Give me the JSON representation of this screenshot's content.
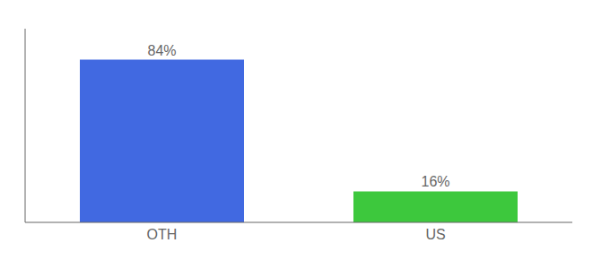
{
  "chart_data": {
    "type": "bar",
    "categories": [
      "OTH",
      "US"
    ],
    "values": [
      84,
      16
    ],
    "value_labels": [
      "84%",
      "16%"
    ],
    "colors": [
      "#4169e1",
      "#3dc83d"
    ],
    "ylim": [
      0,
      100
    ],
    "data_labels": true,
    "tick_labels": "x"
  }
}
